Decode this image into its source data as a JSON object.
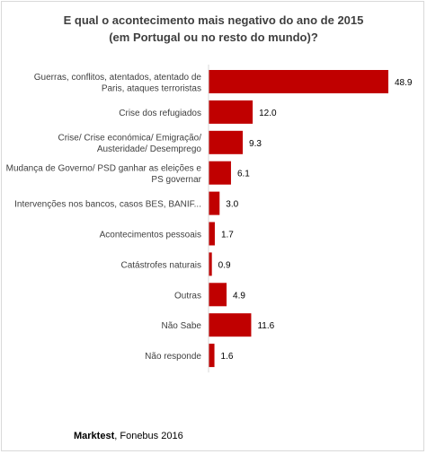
{
  "chart_data": {
    "type": "bar",
    "orientation": "horizontal",
    "title_lines": [
      "E qual o acontecimento mais negativo do ano de 2015",
      "(em Portugal ou no resto do mundo)?"
    ],
    "categories": [
      [
        "Guerras, conflitos, atentados, atentado de",
        "Paris, ataques terroristas"
      ],
      [
        "Crise dos refugiados"
      ],
      [
        "Crise/ Crise económica/ Emigração/",
        "Austeridade/ Desemprego"
      ],
      [
        "Mudança de Governo/ PSD ganhar as eleições e",
        "PS governar"
      ],
      [
        "Intervenções nos bancos, casos BES, BANIF..."
      ],
      [
        "Acontecimentos pessoais"
      ],
      [
        "Catástrofes naturais"
      ],
      [
        "Outras"
      ],
      [
        "Não Sabe"
      ],
      [
        "Não responde"
      ]
    ],
    "values": [
      48.9,
      12.0,
      9.3,
      6.1,
      3.0,
      1.7,
      0.9,
      4.9,
      11.6,
      1.6
    ],
    "value_labels": [
      "48.9",
      "12.0",
      "9.3",
      "6.1",
      "3.0",
      "1.7",
      "0.9",
      "4.9",
      "11.6",
      "1.6"
    ],
    "xlim": [
      0,
      48.9
    ],
    "bar_color": "#c00000",
    "grid": false,
    "legend": "none"
  },
  "footer": {
    "brand": "Marktest",
    "rest": ", Fonebus 2016"
  }
}
